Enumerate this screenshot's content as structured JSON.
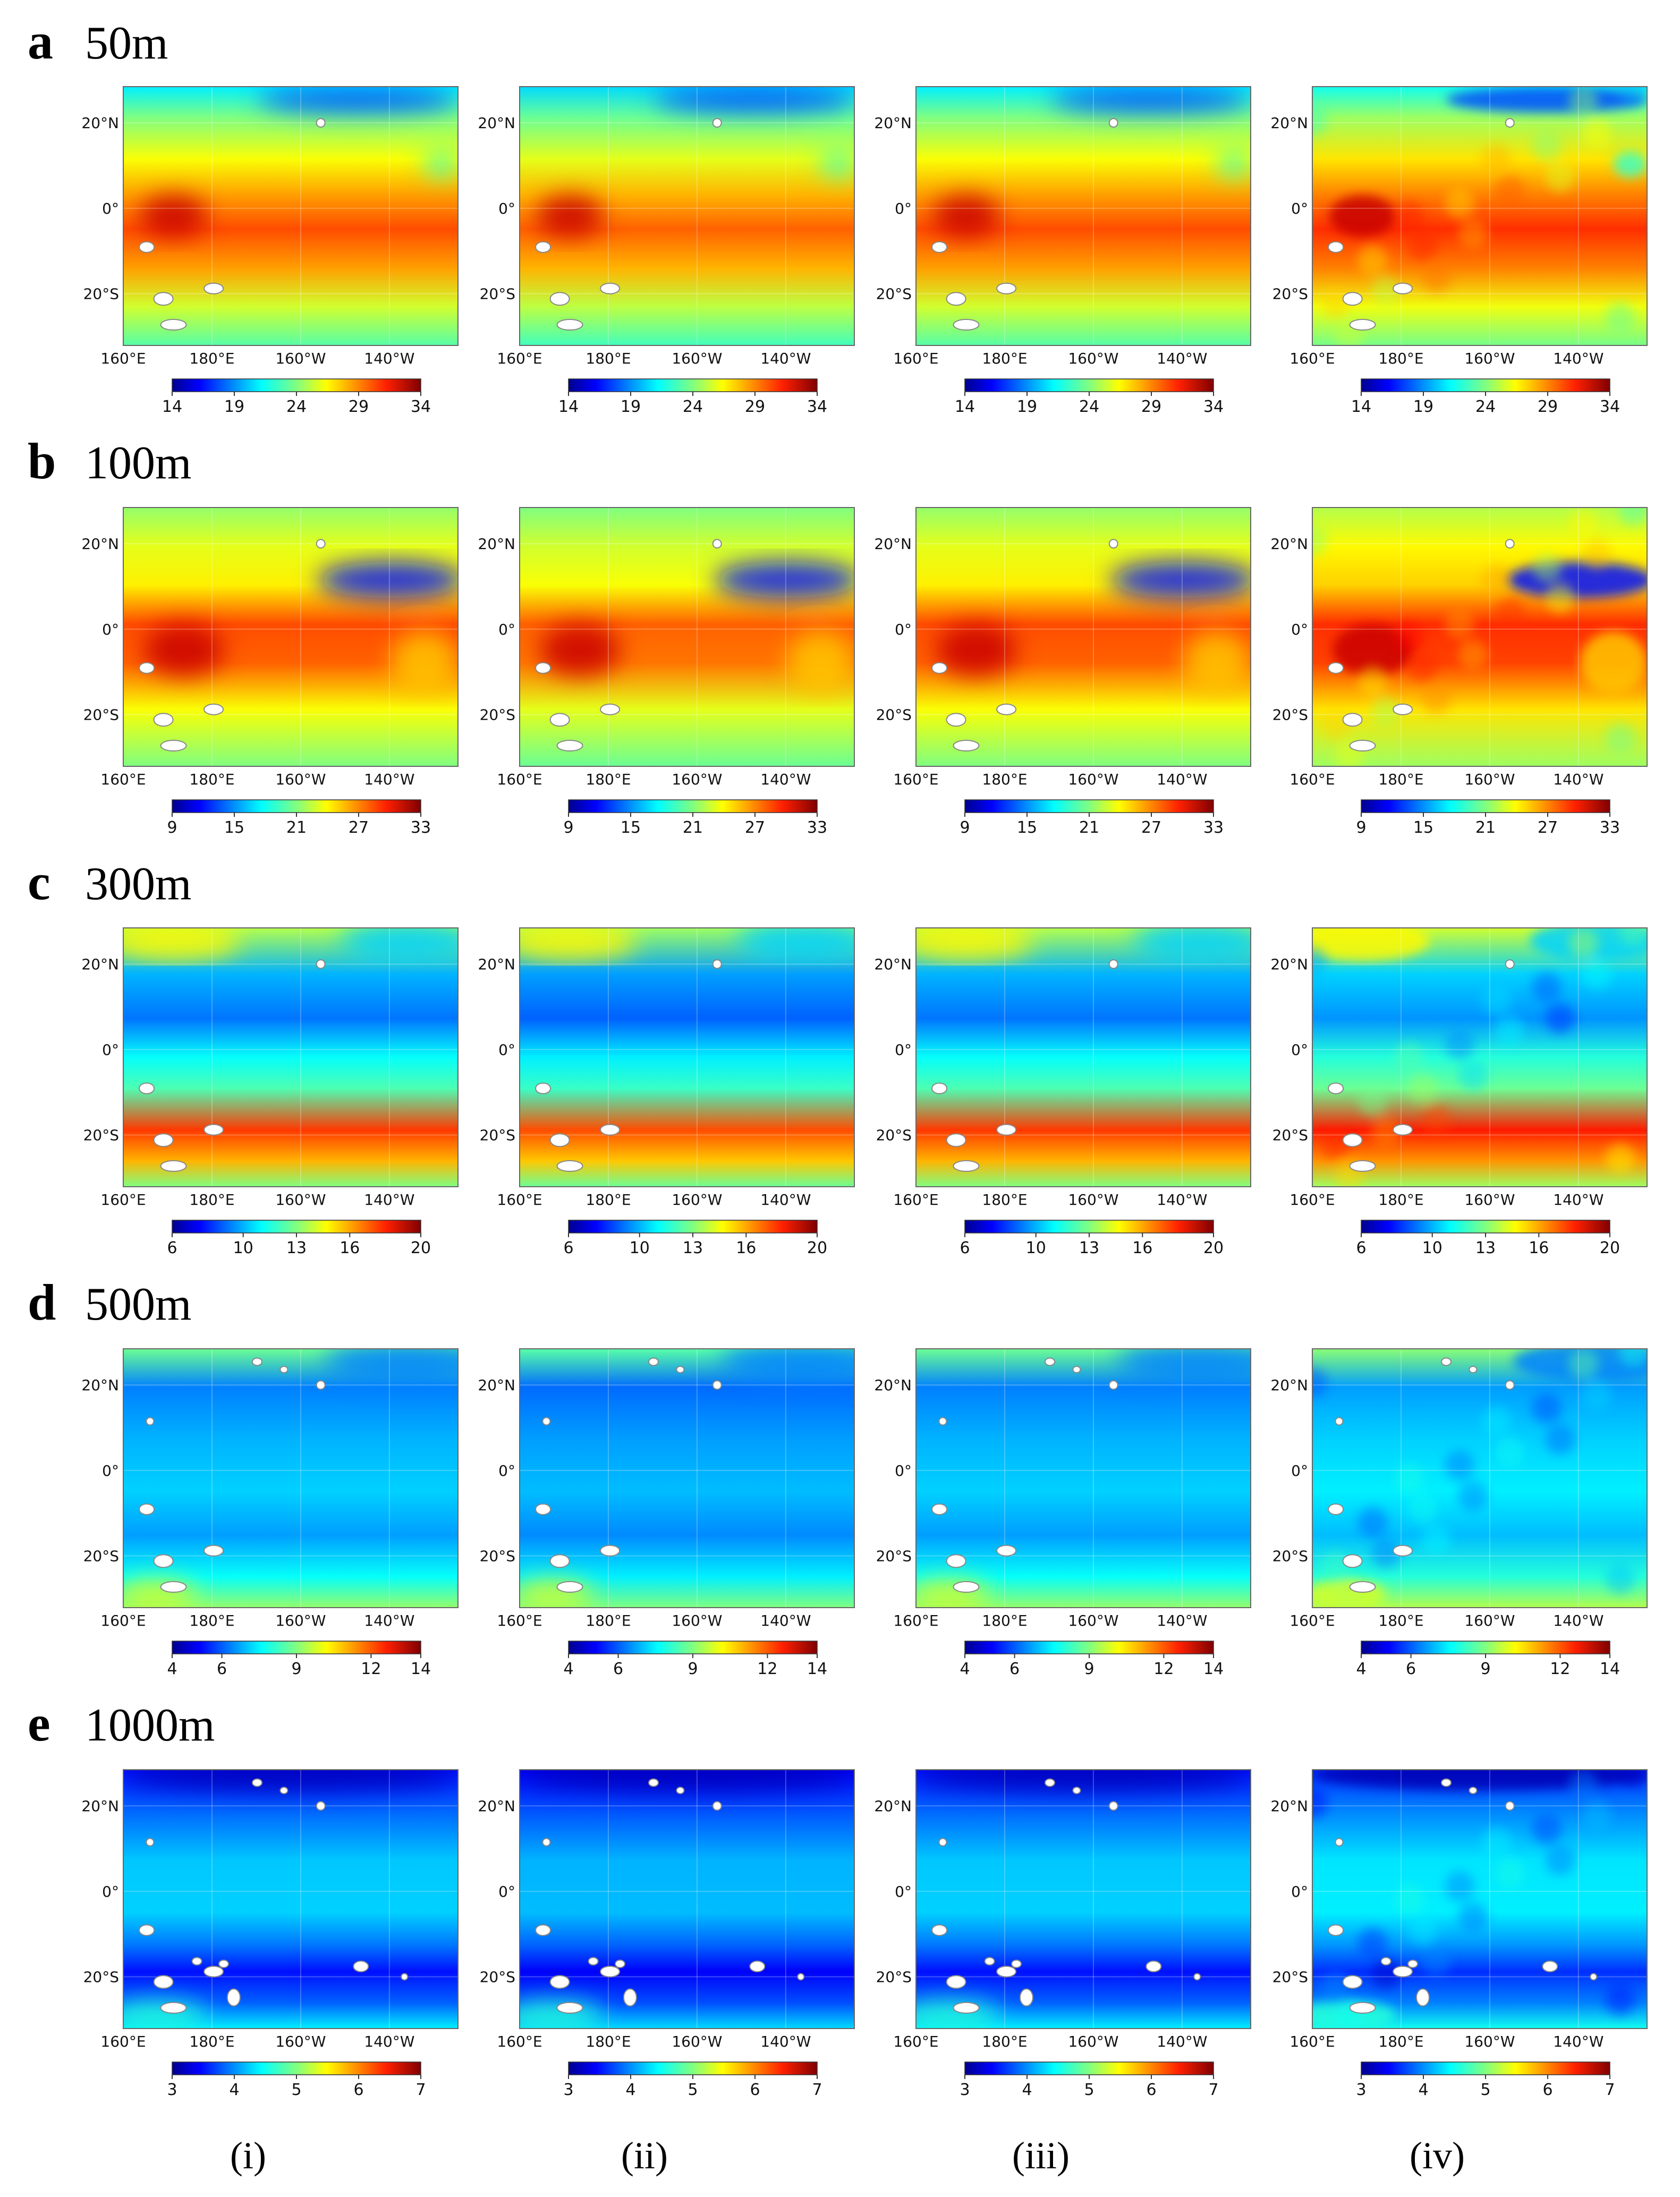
{
  "figure": {
    "column_labels": [
      "(i)",
      "(ii)",
      "(iii)",
      "(iv)"
    ]
  },
  "chart_data": {
    "type": "heatmap",
    "colormap": "jet",
    "lon_ticks": [
      "160°E",
      "180°E",
      "160°W",
      "140°W"
    ],
    "lat_ticks": [
      "20°N",
      "0°",
      "20°S"
    ],
    "rows": [
      {
        "letter": "a",
        "depth": "50m",
        "vmin": 14,
        "vmax": 34,
        "ticks": [
          14,
          19,
          24,
          29,
          34
        ]
      },
      {
        "letter": "b",
        "depth": "100m",
        "vmin": 9,
        "vmax": 33,
        "ticks": [
          9,
          15,
          21,
          27,
          33
        ]
      },
      {
        "letter": "c",
        "depth": "300m",
        "vmin": 6,
        "vmax": 20,
        "ticks": [
          6,
          10,
          13,
          16,
          20
        ]
      },
      {
        "letter": "d",
        "depth": "500m",
        "vmin": 4,
        "vmax": 14,
        "ticks": [
          4,
          6,
          9,
          12,
          14
        ]
      },
      {
        "letter": "e",
        "depth": "1000m",
        "vmin": 3,
        "vmax": 7,
        "ticks": [
          3,
          4,
          5,
          6,
          7
        ]
      }
    ]
  }
}
